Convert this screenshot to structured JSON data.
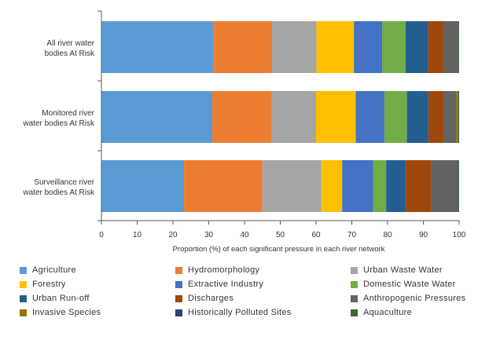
{
  "chart_data": {
    "type": "bar",
    "orientation": "horizontal",
    "stacked": true,
    "title": "",
    "xlabel": "Proportion (%) of each significant pressure in each river network",
    "ylabel": "",
    "xlim": [
      0,
      100
    ],
    "xticks": [
      0,
      10,
      20,
      30,
      40,
      50,
      60,
      70,
      80,
      90,
      100
    ],
    "grid": false,
    "legend_position": "bottom",
    "categories": [
      [
        "All river water",
        "bodies At Risk"
      ],
      [
        "Monitored river",
        "water bodies At Risk"
      ],
      [
        "Surveillance river",
        "water bodies At Risk"
      ]
    ],
    "series": [
      {
        "name": "Agriculture",
        "color": "#5b9bd5",
        "values": [
          31.2,
          31.0,
          23.1
        ]
      },
      {
        "name": "Hydromorphology",
        "color": "#ed7d31",
        "values": [
          16.5,
          16.6,
          21.9
        ]
      },
      {
        "name": "Urban Waste Water",
        "color": "#a5a5a5",
        "values": [
          12.4,
          12.4,
          16.5
        ]
      },
      {
        "name": "Forestry",
        "color": "#ffc000",
        "values": [
          10.5,
          11.1,
          5.8
        ]
      },
      {
        "name": "Extractive Industry",
        "color": "#4472c4",
        "values": [
          7.9,
          8.0,
          8.7
        ]
      },
      {
        "name": "Domestic Waste Water",
        "color": "#70ad47",
        "values": [
          6.5,
          6.3,
          3.6
        ]
      },
      {
        "name": "Urban Run-off",
        "color": "#255e91",
        "values": [
          6.3,
          6.0,
          5.5
        ]
      },
      {
        "name": "Discharges",
        "color": "#9e480e",
        "values": [
          4.4,
          4.4,
          7.0
        ]
      },
      {
        "name": "Anthropogenic Pressures",
        "color": "#636363",
        "values": [
          4.0,
          3.4,
          7.5
        ]
      },
      {
        "name": "Invasive Species",
        "color": "#997300",
        "values": [
          0.0,
          0.4,
          0.0
        ]
      },
      {
        "name": "Historically Polluted Sites",
        "color": "#264478",
        "values": [
          0.1,
          0.1,
          0.2
        ]
      },
      {
        "name": "Aquaculture",
        "color": "#43682b",
        "values": [
          0.2,
          0.3,
          0.2
        ]
      }
    ]
  }
}
